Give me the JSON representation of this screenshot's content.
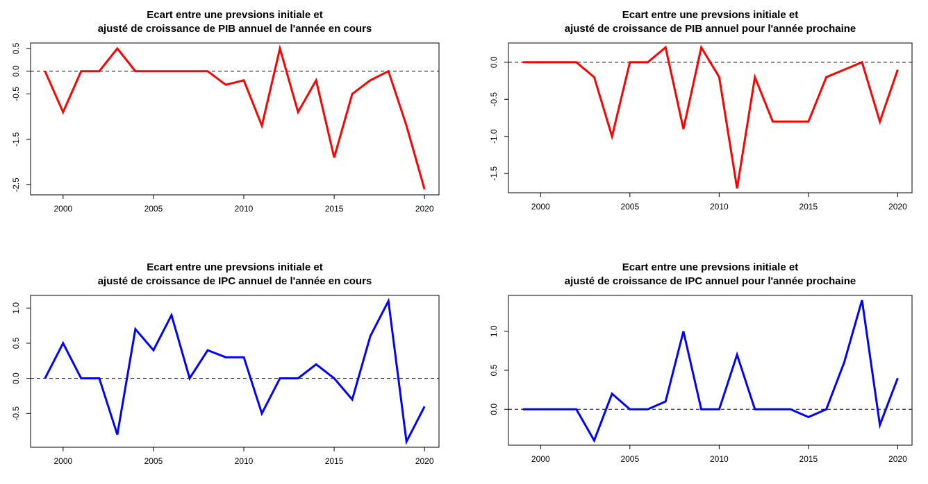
{
  "chart_data": [
    {
      "type": "line",
      "title_lines": [
        "Ecart entre une prevsions initiale et",
        "ajusté de croissance de PIB annuel de l'année en cours"
      ],
      "xlabel": "",
      "ylabel": "",
      "x": [
        1999,
        2000,
        2001,
        2002,
        2003,
        2004,
        2005,
        2006,
        2007,
        2008,
        2009,
        2010,
        2011,
        2012,
        2013,
        2014,
        2015,
        2016,
        2017,
        2018,
        2019,
        2020
      ],
      "series": [
        {
          "values": [
            0,
            -0.9,
            0,
            0,
            0.5,
            0,
            0,
            0,
            0,
            0,
            -0.3,
            -0.2,
            -1.2,
            0.5,
            -0.9,
            -0.2,
            -1.9,
            -0.5,
            -0.2,
            0,
            -1.2,
            -2.6
          ],
          "color": "#ff0000"
        }
      ],
      "xticks": [
        2000,
        2005,
        2010,
        2015,
        2020
      ],
      "xtick_labels": [
        "2000",
        "2005",
        "2010",
        "2015",
        "2020"
      ],
      "yticks": [
        -2.5,
        -1.5,
        -0.5,
        0,
        0.5
      ],
      "ytick_labels": [
        "-2.5",
        "-1.5",
        "-0.5",
        "0.0",
        "0.5"
      ],
      "xlim": [
        1998.2,
        2020.8
      ],
      "ylim": [
        -2.72,
        0.62
      ],
      "reference_line_y": 0,
      "grid": false,
      "legend": "none"
    },
    {
      "type": "line",
      "title_lines": [
        "Ecart entre une prevsions initiale et",
        "ajusté de croissance de PIB annuel pour l'année prochaine"
      ],
      "xlabel": "",
      "ylabel": "",
      "x": [
        1999,
        2000,
        2001,
        2002,
        2003,
        2004,
        2005,
        2006,
        2007,
        2008,
        2009,
        2010,
        2011,
        2012,
        2013,
        2014,
        2015,
        2016,
        2017,
        2018,
        2019,
        2020
      ],
      "series": [
        {
          "values": [
            0,
            0,
            0,
            0,
            -0.2,
            -1,
            0,
            0,
            0.2,
            -0.9,
            0.2,
            -0.2,
            -1.7,
            -0.2,
            -0.8,
            -0.8,
            -0.8,
            -0.2,
            -0.1,
            0,
            -0.8,
            -0.1
          ],
          "color": "#ff0000"
        }
      ],
      "xticks": [
        2000,
        2005,
        2010,
        2015,
        2020
      ],
      "xtick_labels": [
        "2000",
        "2005",
        "2010",
        "2015",
        "2020"
      ],
      "yticks": [
        -1.5,
        -1,
        -0.5,
        0
      ],
      "ytick_labels": [
        "-1.5",
        "-1.0",
        "-0.5",
        "0.0"
      ],
      "xlim": [
        1998.2,
        2020.8
      ],
      "ylim": [
        -1.76,
        0.26
      ],
      "reference_line_y": 0,
      "grid": false,
      "legend": "none"
    },
    {
      "type": "line",
      "title_lines": [
        "Ecart entre une prevsions initiale et",
        "ajusté de croissance de IPC annuel de l'année en cours"
      ],
      "xlabel": "",
      "ylabel": "",
      "x": [
        1999,
        2000,
        2001,
        2002,
        2003,
        2004,
        2005,
        2006,
        2007,
        2008,
        2009,
        2010,
        2011,
        2012,
        2013,
        2014,
        2015,
        2016,
        2017,
        2018,
        2019,
        2020
      ],
      "series": [
        {
          "values": [
            0,
            0.5,
            0,
            0,
            -0.8,
            0.7,
            0.4,
            0.9,
            0,
            0.4,
            0.3,
            0.3,
            -0.5,
            0,
            0,
            0.2,
            0,
            -0.3,
            0.6,
            1.1,
            -0.9,
            -0.4
          ],
          "color": "#0000ff"
        }
      ],
      "xticks": [
        2000,
        2005,
        2010,
        2015,
        2020
      ],
      "xtick_labels": [
        "2000",
        "2005",
        "2010",
        "2015",
        "2020"
      ],
      "yticks": [
        -0.5,
        0,
        0.5,
        1
      ],
      "ytick_labels": [
        "-0.5",
        "0.0",
        "0.5",
        "1.0"
      ],
      "xlim": [
        1998.2,
        2020.8
      ],
      "ylim": [
        -0.98,
        1.18
      ],
      "reference_line_y": 0,
      "grid": false,
      "legend": "none"
    },
    {
      "type": "line",
      "title_lines": [
        "Ecart entre une prevsions initiale et",
        "ajusté de croissance de IPC annuel pour l'année prochaine"
      ],
      "xlabel": "",
      "ylabel": "",
      "x": [
        1999,
        2000,
        2001,
        2002,
        2003,
        2004,
        2005,
        2006,
        2007,
        2008,
        2009,
        2010,
        2011,
        2012,
        2013,
        2014,
        2015,
        2016,
        2017,
        2018,
        2019,
        2020
      ],
      "series": [
        {
          "values": [
            0,
            0,
            0,
            0,
            -0.4,
            0.2,
            0,
            0,
            0.1,
            1,
            0,
            0,
            0.7,
            0,
            0,
            0,
            -0.1,
            0,
            0.6,
            1.4,
            -0.2,
            0.4
          ],
          "color": "#0000ff"
        }
      ],
      "xticks": [
        2000,
        2005,
        2010,
        2015,
        2020
      ],
      "xtick_labels": [
        "2000",
        "2005",
        "2010",
        "2015",
        "2020"
      ],
      "yticks": [
        0,
        0.5,
        1
      ],
      "ytick_labels": [
        "0.0",
        "0.5",
        "1.0"
      ],
      "xlim": [
        1998.2,
        2020.8
      ],
      "ylim": [
        -0.46,
        1.46
      ],
      "reference_line_y": 0,
      "grid": false,
      "legend": "none"
    }
  ]
}
